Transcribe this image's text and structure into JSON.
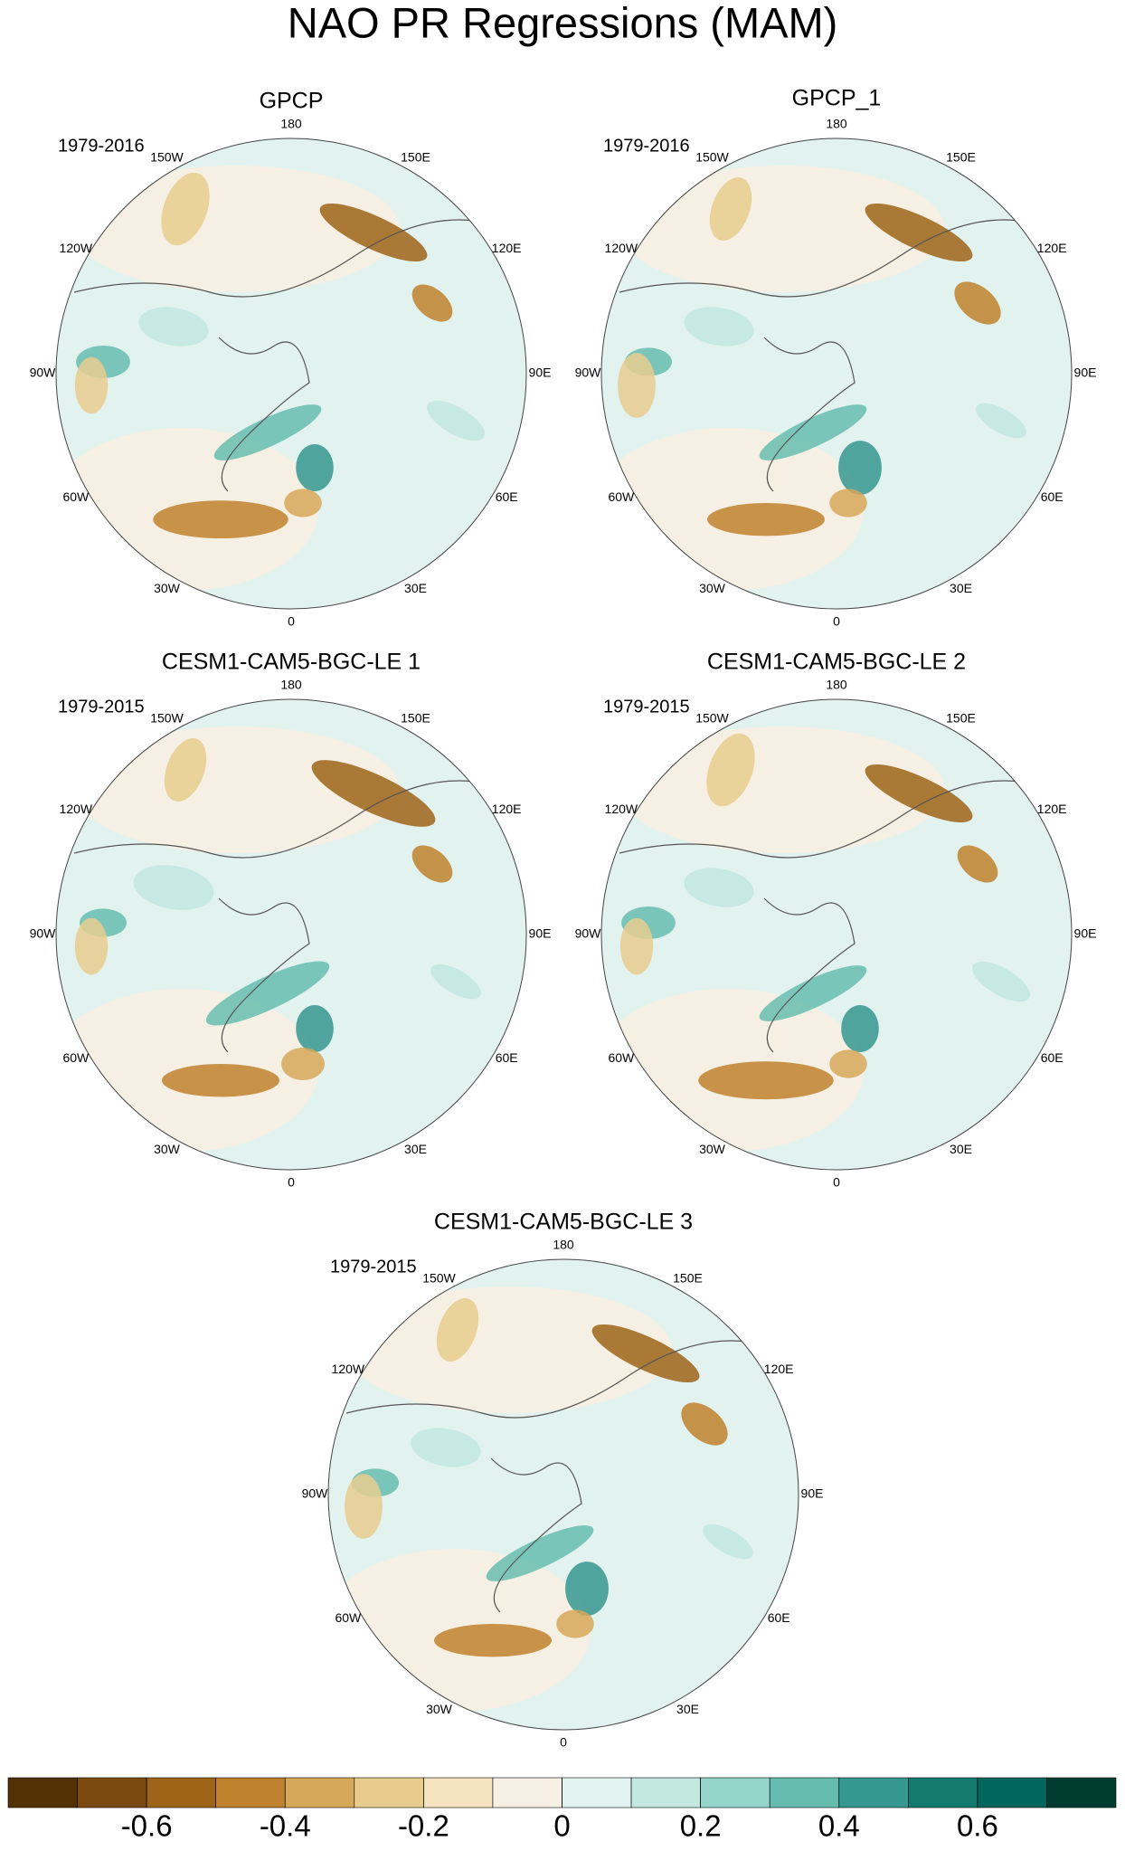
{
  "title": "NAO PR Regressions (MAM)",
  "graticule_labels": [
    "180",
    "150E",
    "120E",
    "90E",
    "60E",
    "30E",
    "0",
    "30W",
    "60W",
    "90W",
    "120W",
    "150W"
  ],
  "panels": [
    {
      "title": "GPCP",
      "period": "1979-2016"
    },
    {
      "title": "GPCP_1",
      "period": "1979-2016"
    },
    {
      "title": "CESM1-CAM5-BGC-LE 1",
      "period": "1979-2015"
    },
    {
      "title": "CESM1-CAM5-BGC-LE 2",
      "period": "1979-2015"
    },
    {
      "title": "CESM1-CAM5-BGC-LE 3",
      "period": "1979-2015"
    }
  ],
  "colorbar": {
    "colors": [
      "#543005",
      "#7a4a0f",
      "#9e6418",
      "#bf812d",
      "#d6a85a",
      "#e8cc8e",
      "#f5e3bf",
      "#f5f0e3",
      "#e2f2ef",
      "#c2e8e0",
      "#93d5c8",
      "#66bdaf",
      "#35978f",
      "#137a6f",
      "#01665e",
      "#003c30"
    ],
    "lim": [
      -0.8,
      0.8
    ],
    "ticks": [
      -0.6,
      -0.4,
      -0.2,
      0,
      0.2,
      0.4,
      0.6
    ]
  }
}
